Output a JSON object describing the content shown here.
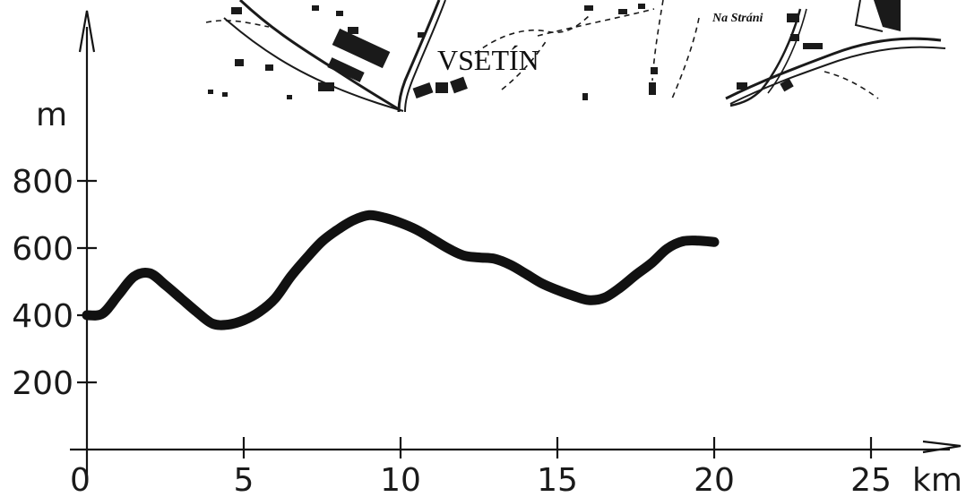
{
  "map": {
    "town_main": "VSETÍN",
    "town_small": "Na Stráni"
  },
  "chart_data": {
    "type": "line",
    "title": "",
    "xlabel": "",
    "ylabel": "",
    "x_unit": "km",
    "y_unit": "m",
    "xlim": [
      0,
      25
    ],
    "ylim": [
      0,
      900
    ],
    "x_ticks": [
      0,
      5,
      10,
      15,
      20,
      25
    ],
    "x_tick_labels": [
      "0",
      "5",
      "10",
      "15",
      "20",
      "25"
    ],
    "y_ticks": [
      200,
      400,
      600,
      800
    ],
    "y_tick_labels": [
      "200",
      "400",
      "600",
      "800"
    ],
    "grid": false,
    "line_color": "#111111",
    "series": [
      {
        "x": [
          0,
          0.5,
          1,
          1.5,
          2,
          2.5,
          3,
          3.5,
          4,
          4.5,
          5,
          5.5,
          6,
          6.5,
          7,
          7.5,
          8,
          8.5,
          9,
          9.5,
          10,
          10.5,
          11,
          11.5,
          12,
          12.5,
          13,
          13.5,
          14,
          14.5,
          15,
          15.5,
          16,
          16.5,
          17,
          17.5,
          18,
          18.5,
          19,
          19.5,
          20
        ],
        "y": [
          400,
          405,
          460,
          515,
          525,
          490,
          450,
          410,
          375,
          372,
          385,
          410,
          450,
          515,
          570,
          620,
          655,
          683,
          698,
          690,
          675,
          655,
          628,
          600,
          578,
          572,
          568,
          550,
          523,
          495,
          475,
          458,
          445,
          452,
          482,
          520,
          555,
          598,
          620,
          622,
          618
        ]
      }
    ]
  }
}
